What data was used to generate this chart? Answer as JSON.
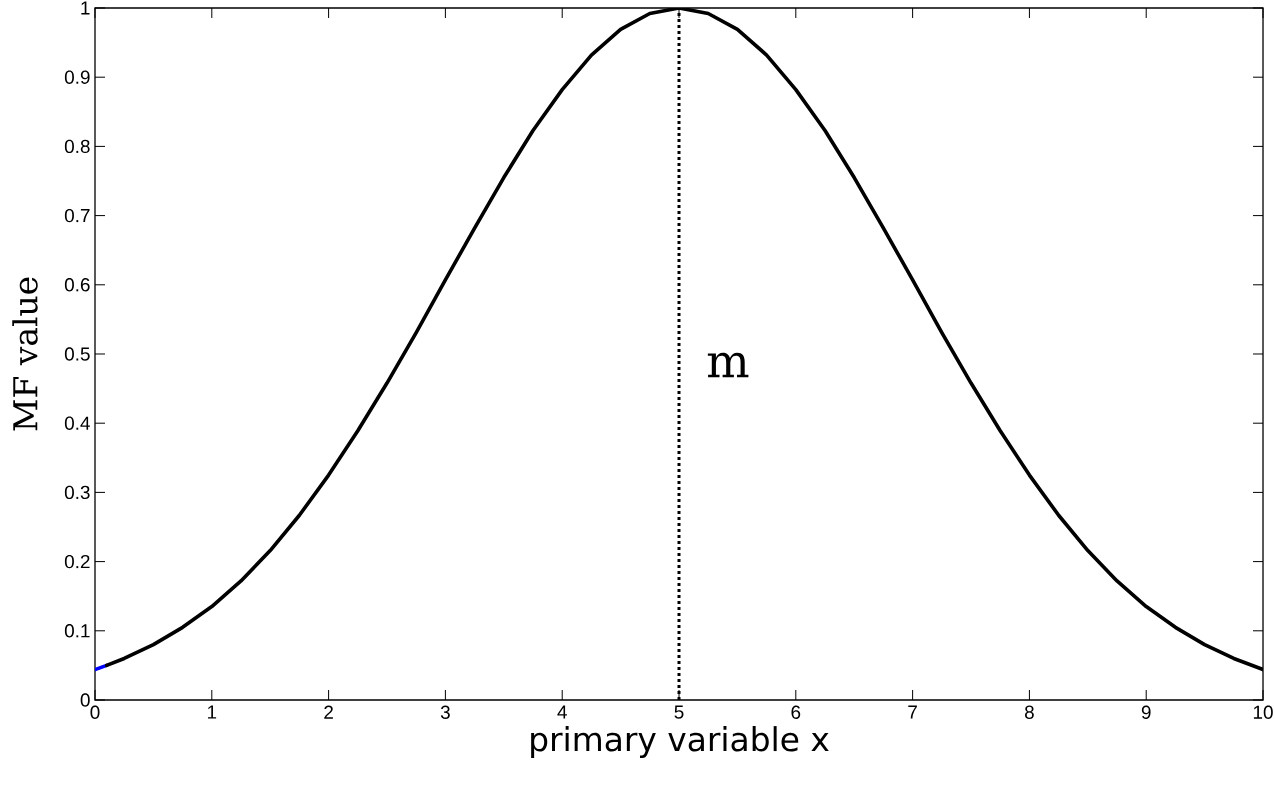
{
  "chart_data": {
    "type": "line",
    "xlabel": "primary variable x",
    "ylabel": "MF value",
    "xlim": [
      0,
      10
    ],
    "ylim": [
      0,
      1
    ],
    "xticks": [
      0,
      1,
      2,
      3,
      4,
      5,
      6,
      7,
      8,
      9,
      10
    ],
    "yticks": [
      0,
      0.1,
      0.2,
      0.3,
      0.4,
      0.5,
      0.6,
      0.7,
      0.8,
      0.9,
      1
    ],
    "series": [
      {
        "color": "#0000ff",
        "x": [
          0,
          0.1
        ],
        "values": [
          0.044,
          0.05
        ]
      },
      {
        "color": "#000000",
        "x": [
          0.1,
          0.25,
          0.5,
          0.75,
          1,
          1.25,
          1.5,
          1.75,
          2,
          2.25,
          2.5,
          2.75,
          3,
          3.25,
          3.5,
          3.75,
          4,
          4.25,
          4.5,
          4.75,
          5,
          5.25,
          5.5,
          5.75,
          6,
          6.25,
          6.5,
          6.75,
          7,
          7.25,
          7.5,
          7.75,
          8,
          8.25,
          8.5,
          8.75,
          9,
          9.25,
          9.5,
          9.75,
          10
        ],
        "values": [
          0.05,
          0.06,
          0.08,
          0.105,
          0.135,
          0.172,
          0.216,
          0.267,
          0.325,
          0.389,
          0.458,
          0.531,
          0.607,
          0.682,
          0.755,
          0.823,
          0.882,
          0.932,
          0.969,
          0.992,
          1,
          0.992,
          0.969,
          0.932,
          0.882,
          0.823,
          0.755,
          0.682,
          0.607,
          0.531,
          0.458,
          0.389,
          0.325,
          0.267,
          0.216,
          0.172,
          0.135,
          0.105,
          0.08,
          0.06,
          0.044
        ]
      }
    ],
    "ref_lines": [
      {
        "axis": "x",
        "value": 5,
        "label": "m",
        "line_style": "dotted",
        "color": "#000000"
      }
    ]
  }
}
